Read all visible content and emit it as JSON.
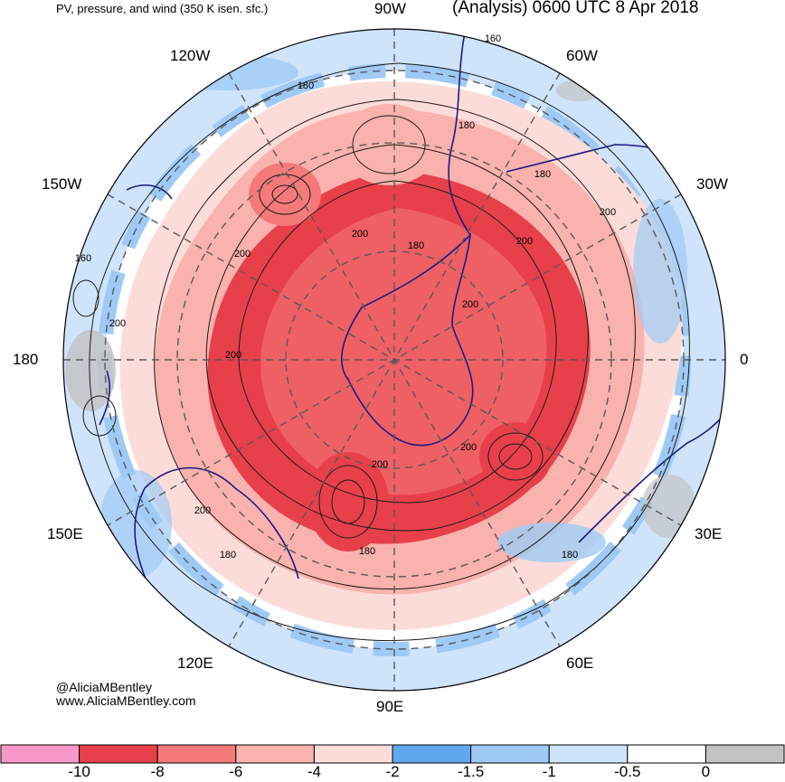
{
  "titles": {
    "left": "PV, pressure, and wind (350 K isen. sfc.)",
    "right": "(Analysis) 0600 UTC 8 Apr 2018"
  },
  "longitude_labels": {
    "lon_90w": "90W",
    "lon_60w": "60W",
    "lon_30w": "30W",
    "lon_0": "0",
    "lon_30e": "30E",
    "lon_60e": "60E",
    "lon_90e": "90E",
    "lon_120e": "120E",
    "lon_150e": "150E",
    "lon_180": "180",
    "lon_150w": "150W",
    "lon_120w": "120W"
  },
  "contour_labels": [
    "160",
    "180",
    "180",
    "180",
    "200",
    "180",
    "200",
    "200",
    "160",
    "200",
    "200",
    "200",
    "200",
    "200",
    "200",
    "180",
    "180",
    "180",
    "200"
  ],
  "credits": {
    "handle": "@AliciaMBentley",
    "site": "www.AliciaMBentley.com"
  },
  "colorbar": {
    "bins": [
      {
        "color": "#f799c8"
      },
      {
        "color": "#e8404a"
      },
      {
        "color": "#f47a7a"
      },
      {
        "color": "#f9b2ad"
      },
      {
        "color": "#fcdcd8"
      },
      {
        "color": "#5fa8f0"
      },
      {
        "color": "#9fcaf5"
      },
      {
        "color": "#cfe3fa"
      },
      {
        "color": "#ffffff"
      },
      {
        "color": "#c3c3c3"
      }
    ],
    "ticks": [
      "-10",
      "-8",
      "-6",
      "-4",
      "-2",
      "-1.5",
      "-1",
      "-0.5",
      "0"
    ]
  }
}
